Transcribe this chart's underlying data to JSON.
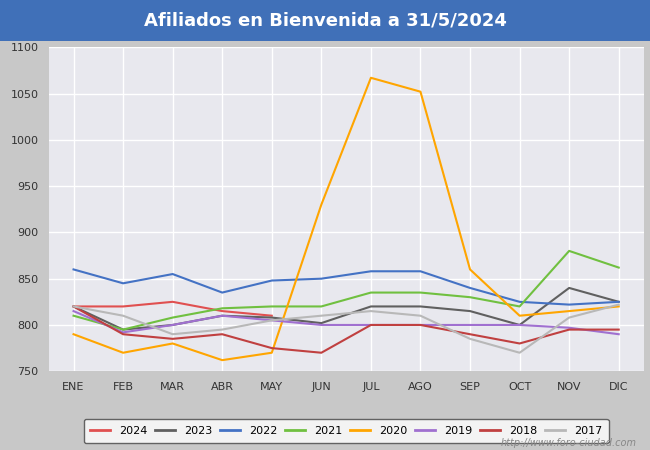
{
  "title": "Afiliados en Bienvenida a 31/5/2024",
  "title_color": "#ffffff",
  "title_bg_color": "#4070b8",
  "ylim": [
    750,
    1100
  ],
  "yticks": [
    750,
    800,
    850,
    900,
    950,
    1000,
    1050,
    1100
  ],
  "months": [
    "ENE",
    "FEB",
    "MAR",
    "ABR",
    "MAY",
    "JUN",
    "JUL",
    "AGO",
    "SEP",
    "OCT",
    "NOV",
    "DIC"
  ],
  "series": {
    "2024": {
      "color": "#e05050",
      "values": [
        820,
        820,
        825,
        815,
        810,
        null,
        null,
        null,
        null,
        null,
        null,
        null
      ]
    },
    "2023": {
      "color": "#606060",
      "values": [
        820,
        795,
        800,
        810,
        808,
        802,
        820,
        820,
        815,
        800,
        840,
        825
      ]
    },
    "2022": {
      "color": "#4472c4",
      "values": [
        860,
        845,
        855,
        835,
        848,
        850,
        858,
        858,
        840,
        825,
        822,
        825
      ]
    },
    "2021": {
      "color": "#70c040",
      "values": [
        810,
        795,
        808,
        818,
        820,
        820,
        835,
        835,
        830,
        820,
        880,
        862
      ]
    },
    "2020": {
      "color": "#ffa500",
      "values": [
        790,
        770,
        780,
        762,
        770,
        930,
        1067,
        1052,
        860,
        810,
        815,
        820
      ]
    },
    "2019": {
      "color": "#a070d0",
      "values": [
        815,
        792,
        800,
        810,
        805,
        800,
        800,
        800,
        800,
        800,
        797,
        790
      ]
    },
    "2018": {
      "color": "#c04040",
      "values": [
        820,
        790,
        785,
        790,
        775,
        770,
        800,
        800,
        790,
        780,
        795,
        795
      ]
    },
    "2017": {
      "color": "#b8b8b8",
      "values": [
        820,
        810,
        790,
        795,
        805,
        810,
        815,
        810,
        785,
        770,
        808,
        822
      ]
    }
  },
  "legend_order": [
    "2024",
    "2023",
    "2022",
    "2021",
    "2020",
    "2019",
    "2018",
    "2017"
  ],
  "watermark": "http://www.foro-ciudad.com",
  "outer_bg_color": "#c8c8c8",
  "plot_bg_color": "#e8e8ee",
  "grid_color": "#ffffff",
  "line_width": 1.5,
  "title_fontsize": 13
}
